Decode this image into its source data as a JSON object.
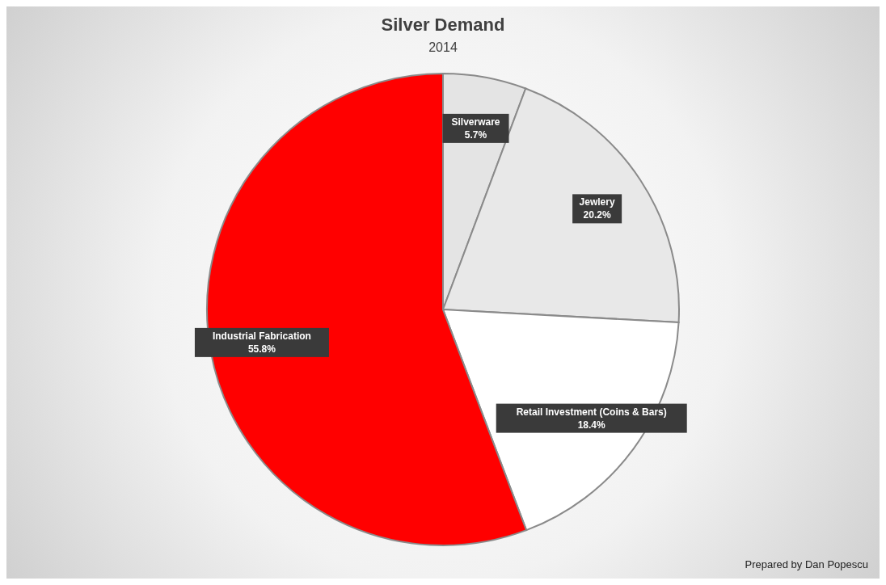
{
  "chart_data": {
    "type": "pie",
    "title": "Silver Demand",
    "subtitle": "2014",
    "categories": [
      "Silverware",
      "Jewlery",
      "Retail Investment (Coins & Bars)",
      "Industrial Fabrication"
    ],
    "values": [
      5.7,
      20.2,
      18.4,
      55.8
    ],
    "colors": [
      "#e4e4e4",
      "#e8e8e8",
      "#ffffff",
      "#ff0000"
    ],
    "value_labels": [
      "5.7%",
      "20.2%",
      "18.4%",
      "55.8%"
    ],
    "annotations": [
      "Prepared by Dan Popescu"
    ],
    "legend": false
  }
}
